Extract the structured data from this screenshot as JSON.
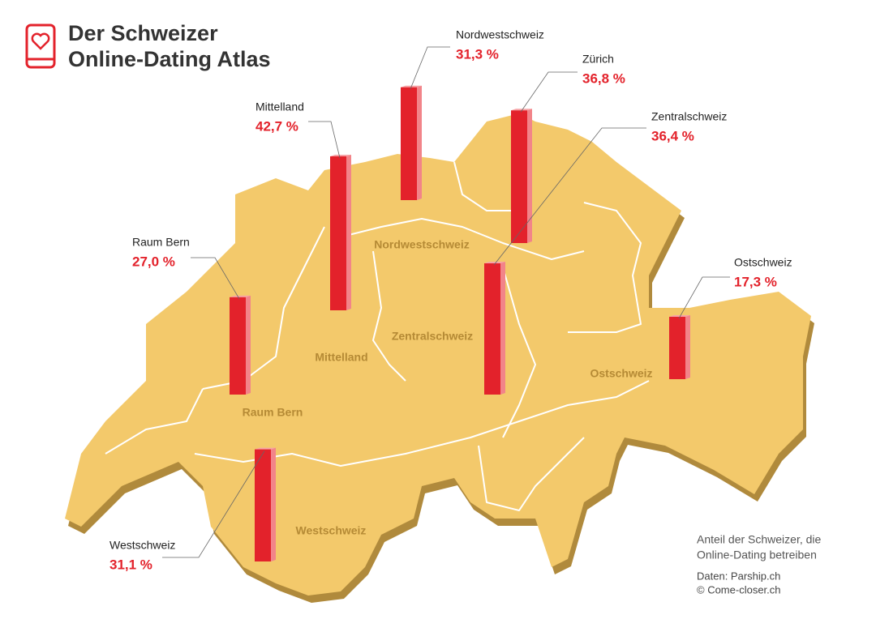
{
  "chart_data": {
    "type": "map-bar",
    "title_lines": [
      "Der Schweizer",
      "Online-Dating Atlas"
    ],
    "categories": [
      "Nordwestschweiz",
      "Zürich",
      "Zentralschweiz",
      "Mittelland",
      "Raum Bern",
      "Ostschweiz",
      "Westschweiz"
    ],
    "values": [
      31.3,
      36.8,
      36.4,
      42.7,
      27.0,
      17.3,
      31.1
    ],
    "value_labels": [
      "31,3 %",
      "36,8 %",
      "36,4 %",
      "42,7 %",
      "27,0 %",
      "17,3 %",
      "31,1 %"
    ],
    "map_labels": [
      "Nordwestschweiz",
      "Zentralschweiz",
      "Mittelland",
      "Ostschweiz",
      "Raum Bern",
      "Westschweiz"
    ],
    "color": "#e3222b",
    "note_lines": [
      "Anteil der Schweizer, die",
      "Online-Dating betreiben"
    ],
    "source_lines": [
      "Daten: Parship.ch",
      "© Come-closer.ch"
    ]
  }
}
